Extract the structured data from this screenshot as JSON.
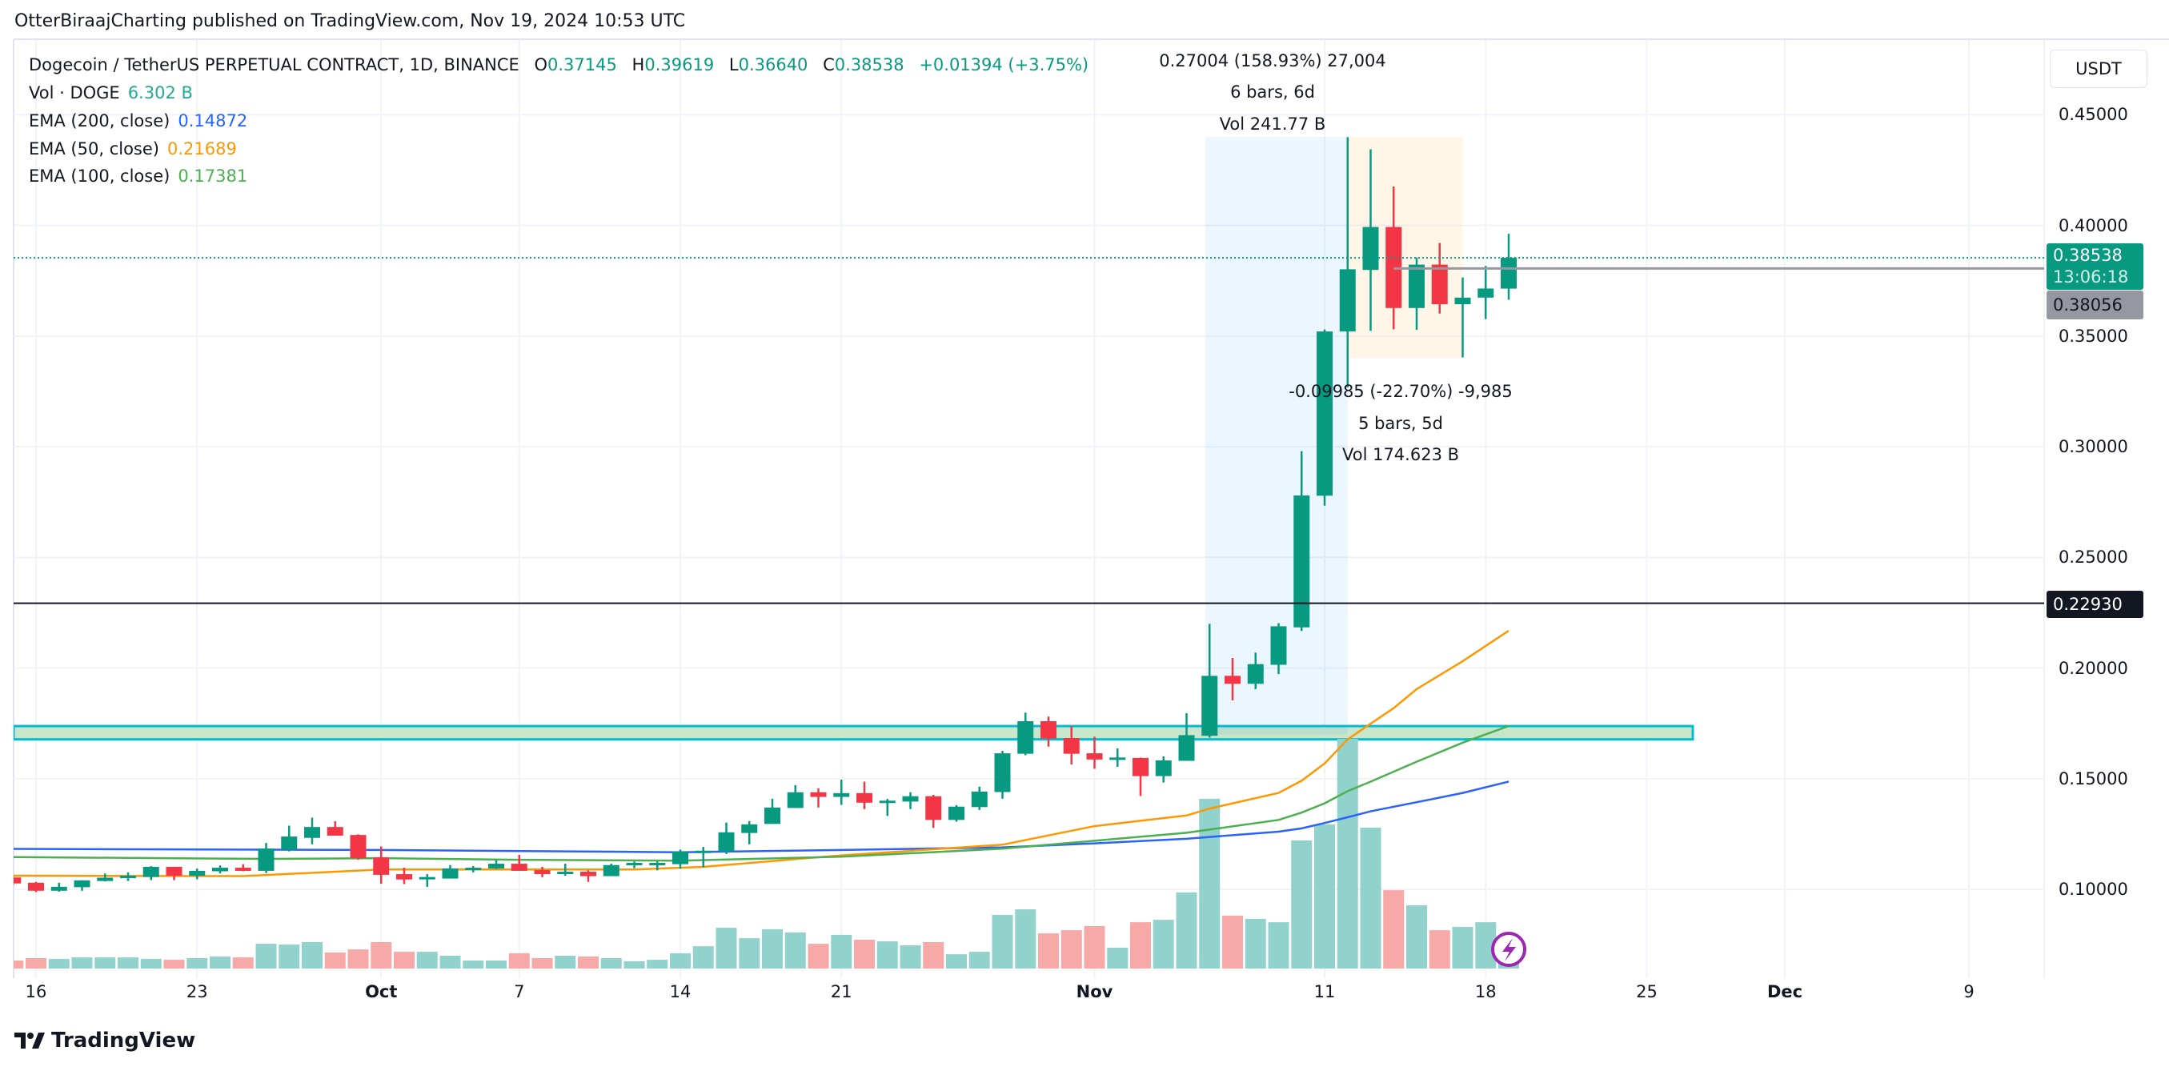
{
  "header": {
    "published": "OtterBiraajCharting published on TradingView.com, Nov 19, 2024 10:53 UTC"
  },
  "legend": {
    "symbol": "Dogecoin / TetherUS PERPETUAL CONTRACT, 1D, BINANCE",
    "o_label": "O",
    "o": "0.37145",
    "h_label": "H",
    "h": "0.39619",
    "l_label": "L",
    "l": "0.36640",
    "c_label": "C",
    "c": "0.38538",
    "change": "+0.01394 (+3.75%)",
    "vol_label": "Vol · DOGE",
    "vol": "6.302 B",
    "ema200_label": "EMA (200, close)",
    "ema200": "0.14872",
    "ema50_label": "EMA (50, close)",
    "ema50": "0.21689",
    "ema100_label": "EMA (100, close)",
    "ema100": "0.17381"
  },
  "currency_button": "USDT",
  "price_labels": {
    "last": "0.38538",
    "countdown": "13:06:18",
    "gray_line": "0.38056",
    "horizontal_line": "0.22930"
  },
  "measure_up": {
    "change": "0.27004 (158.93%) 27,004",
    "bars": "6 bars, 6d",
    "vol": "Vol 241.77 B"
  },
  "measure_down": {
    "change": "-0.09985 (-22.70%) -9,985",
    "bars": "5 bars, 5d",
    "vol": "Vol 174.623 B"
  },
  "brand": "TradingView",
  "colors": {
    "up": "#089981",
    "down": "#f23645",
    "vol_up": "#92d2cc",
    "vol_down": "#f7a9a7",
    "ema200": "#2962ff",
    "ema50": "#ff9800",
    "ema100": "#4caf50",
    "zone_fill": "#c8e6c9",
    "zone_border": "#00bcd4",
    "hline": "#131722",
    "gray_line": "#9598a1",
    "lightning": "#9c27b0"
  },
  "chart_data": {
    "type": "candlestick",
    "title": "Dogecoin / TetherUS PERPETUAL CONTRACT, 1D, BINANCE",
    "y_axis": {
      "ticks": [
        "0.45000",
        "0.40000",
        "0.35000",
        "0.30000",
        "0.25000",
        "0.20000",
        "0.15000",
        "0.10000"
      ],
      "tick_values": [
        0.45,
        0.4,
        0.35,
        0.3,
        0.25,
        0.2,
        0.15,
        0.1
      ],
      "range": [
        0.07,
        0.47
      ],
      "unit": "USDT"
    },
    "x_axis": {
      "ticks": [
        {
          "label": "16",
          "date": "2024-09-16"
        },
        {
          "label": "23",
          "date": "2024-09-23"
        },
        {
          "label": "Oct",
          "date": "2024-10-01",
          "major": true
        },
        {
          "label": "7",
          "date": "2024-10-07"
        },
        {
          "label": "14",
          "date": "2024-10-14"
        },
        {
          "label": "21",
          "date": "2024-10-21"
        },
        {
          "label": "Nov",
          "date": "2024-11-01",
          "major": true
        },
        {
          "label": "11",
          "date": "2024-11-11"
        },
        {
          "label": "18",
          "date": "2024-11-18"
        },
        {
          "label": "25",
          "date": "2024-11-25"
        },
        {
          "label": "Dec",
          "date": "2024-12-01",
          "major": true
        },
        {
          "label": "9",
          "date": "2024-12-09"
        }
      ]
    },
    "grid": true,
    "columns": [
      "date",
      "open",
      "high",
      "low",
      "close",
      "volume_B"
    ],
    "candles": [
      [
        "2024-09-15",
        0.1054,
        0.106,
        0.102,
        0.1027,
        3.3
      ],
      [
        "2024-09-16",
        0.103,
        0.1034,
        0.0988,
        0.0994,
        4.3
      ],
      [
        "2024-09-17",
        0.0994,
        0.103,
        0.099,
        0.1012,
        4.0
      ],
      [
        "2024-09-18",
        0.101,
        0.1041,
        0.0994,
        0.1041,
        4.6
      ],
      [
        "2024-09-19",
        0.1038,
        0.1072,
        0.1036,
        0.1053,
        4.6
      ],
      [
        "2024-09-20",
        0.1055,
        0.1077,
        0.1038,
        0.1062,
        4.6
      ],
      [
        "2024-09-21",
        0.1056,
        0.1105,
        0.1042,
        0.1102,
        4.0
      ],
      [
        "2024-09-22",
        0.1102,
        0.1102,
        0.1042,
        0.1062,
        3.6
      ],
      [
        "2024-09-23",
        0.1062,
        0.1094,
        0.1046,
        0.1084,
        4.3
      ],
      [
        "2024-09-24",
        0.1082,
        0.1108,
        0.1072,
        0.1098,
        5.0
      ],
      [
        "2024-09-25",
        0.1098,
        0.1114,
        0.1082,
        0.1084,
        4.6
      ],
      [
        "2024-09-26",
        0.1084,
        0.121,
        0.1074,
        0.1185,
        10.2
      ],
      [
        "2024-09-27",
        0.118,
        0.1288,
        0.1172,
        0.1239,
        9.9
      ],
      [
        "2024-09-28",
        0.1233,
        0.1324,
        0.1204,
        0.1282,
        10.9
      ],
      [
        "2024-09-29",
        0.1282,
        0.1308,
        0.1243,
        0.1243,
        6.6
      ],
      [
        "2024-09-30",
        0.1246,
        0.1249,
        0.1134,
        0.1141,
        7.9
      ],
      [
        "2024-10-01",
        0.1145,
        0.1194,
        0.1026,
        0.1066,
        10.9
      ],
      [
        "2024-10-02",
        0.1069,
        0.1098,
        0.1024,
        0.1045,
        6.9
      ],
      [
        "2024-10-03",
        0.1053,
        0.1069,
        0.1012,
        0.1056,
        6.9
      ],
      [
        "2024-10-04",
        0.1049,
        0.111,
        0.1049,
        0.1095,
        5.3
      ],
      [
        "2024-10-05",
        0.1091,
        0.1105,
        0.1077,
        0.1098,
        3.3
      ],
      [
        "2024-10-06",
        0.1095,
        0.1132,
        0.1092,
        0.1116,
        3.3
      ],
      [
        "2024-10-07",
        0.1116,
        0.1156,
        0.1084,
        0.1084,
        6.3
      ],
      [
        "2024-10-08",
        0.1087,
        0.1102,
        0.1055,
        0.1069,
        4.3
      ],
      [
        "2024-10-09",
        0.1071,
        0.1116,
        0.1062,
        0.108,
        5.3
      ],
      [
        "2024-10-10",
        0.108,
        0.1086,
        0.1034,
        0.106,
        5.0
      ],
      [
        "2024-10-11",
        0.106,
        0.1116,
        0.106,
        0.111,
        4.3
      ],
      [
        "2024-10-12",
        0.1114,
        0.1126,
        0.1096,
        0.112,
        3.0
      ],
      [
        "2024-10-13",
        0.1114,
        0.1126,
        0.1086,
        0.112,
        3.6
      ],
      [
        "2024-10-14",
        0.1114,
        0.118,
        0.1094,
        0.1171,
        6.3
      ],
      [
        "2024-10-15",
        0.1169,
        0.1192,
        0.11,
        0.1175,
        9.2
      ],
      [
        "2024-10-16",
        0.1172,
        0.1302,
        0.116,
        0.1258,
        16.8
      ],
      [
        "2024-10-17",
        0.1255,
        0.1309,
        0.1204,
        0.1294,
        12.5
      ],
      [
        "2024-10-18",
        0.1296,
        0.141,
        0.1296,
        0.137,
        16.2
      ],
      [
        "2024-10-19",
        0.1368,
        0.1471,
        0.1368,
        0.1439,
        14.9
      ],
      [
        "2024-10-20",
        0.1439,
        0.1457,
        0.137,
        0.1418,
        10.2
      ],
      [
        "2024-10-21",
        0.1418,
        0.1496,
        0.1382,
        0.1435,
        13.9
      ],
      [
        "2024-10-22",
        0.1435,
        0.1487,
        0.1363,
        0.1392,
        11.9
      ],
      [
        "2024-10-23",
        0.1397,
        0.1409,
        0.1332,
        0.1401,
        11.2
      ],
      [
        "2024-10-24",
        0.1397,
        0.1439,
        0.1363,
        0.1421,
        9.6
      ],
      [
        "2024-10-25",
        0.1421,
        0.1427,
        0.1278,
        0.1314,
        10.9
      ],
      [
        "2024-10-26",
        0.1314,
        0.1381,
        0.1306,
        0.1374,
        5.9
      ],
      [
        "2024-10-27",
        0.1372,
        0.1464,
        0.1359,
        0.1442,
        6.9
      ],
      [
        "2024-10-28",
        0.144,
        0.1626,
        0.141,
        0.1615,
        22.1
      ],
      [
        "2024-10-29",
        0.1613,
        0.1799,
        0.1606,
        0.176,
        24.4
      ],
      [
        "2024-10-30",
        0.176,
        0.1781,
        0.1645,
        0.1682,
        14.5
      ],
      [
        "2024-10-31",
        0.1684,
        0.1737,
        0.1565,
        0.1613,
        15.8
      ],
      [
        "2024-11-01",
        0.1615,
        0.169,
        0.1545,
        0.1587,
        17.5
      ],
      [
        "2024-11-02",
        0.1591,
        0.1637,
        0.1554,
        0.1596,
        8.6
      ],
      [
        "2024-11-03",
        0.1594,
        0.1596,
        0.1422,
        0.1512,
        19.1
      ],
      [
        "2024-11-04",
        0.1512,
        0.1601,
        0.1483,
        0.1583,
        20.1
      ],
      [
        "2024-11-05",
        0.1581,
        0.1796,
        0.1581,
        0.1697,
        31.4
      ],
      [
        "2024-11-06",
        0.1694,
        0.22,
        0.1686,
        0.1965,
        70.0
      ],
      [
        "2024-11-07",
        0.1965,
        0.2046,
        0.1854,
        0.1929,
        21.8
      ],
      [
        "2024-11-08",
        0.1929,
        0.207,
        0.1905,
        0.2018,
        20.5
      ],
      [
        "2024-11-09",
        0.2015,
        0.2203,
        0.1973,
        0.2189,
        19.1
      ],
      [
        "2024-11-10",
        0.2184,
        0.298,
        0.2168,
        0.278,
        52.8
      ],
      [
        "2024-11-11",
        0.2779,
        0.353,
        0.2734,
        0.3521,
        59.4
      ],
      [
        "2024-11-12",
        0.3521,
        0.4399,
        0.3268,
        0.3802,
        94.7
      ],
      [
        "2024-11-13",
        0.3799,
        0.4344,
        0.3524,
        0.3993,
        58.1
      ],
      [
        "2024-11-14",
        0.3993,
        0.4176,
        0.3531,
        0.3627,
        32.3
      ],
      [
        "2024-11-15",
        0.3627,
        0.3855,
        0.3528,
        0.3823,
        26.1
      ],
      [
        "2024-11-16",
        0.3823,
        0.3921,
        0.3602,
        0.3644,
        15.8
      ],
      [
        "2024-11-17",
        0.3644,
        0.3765,
        0.3404,
        0.3674,
        17.2
      ],
      [
        "2024-11-18",
        0.3674,
        0.3817,
        0.3577,
        0.3715,
        19.1
      ],
      [
        "2024-11-19",
        0.37145,
        0.39619,
        0.3664,
        0.38538,
        6.302
      ]
    ],
    "ema": [
      {
        "name": "EMA (200, close)",
        "color": "#2962ff",
        "points": [
          [
            "2024-09-15",
            0.1183
          ],
          [
            "2024-10-01",
            0.1178
          ],
          [
            "2024-10-14",
            0.1168
          ],
          [
            "2024-10-21",
            0.1178
          ],
          [
            "2024-10-28",
            0.119
          ],
          [
            "2024-11-01",
            0.1208
          ],
          [
            "2024-11-05",
            0.1229
          ],
          [
            "2024-11-09",
            0.1261
          ],
          [
            "2024-11-10",
            0.1276
          ],
          [
            "2024-11-11",
            0.13
          ],
          [
            "2024-11-12",
            0.1326
          ],
          [
            "2024-11-13",
            0.1353
          ],
          [
            "2024-11-15",
            0.1394
          ],
          [
            "2024-11-17",
            0.1436
          ],
          [
            "2024-11-19",
            0.14872
          ]
        ]
      },
      {
        "name": "EMA (50, close)",
        "color": "#ff9800",
        "points": [
          [
            "2024-09-15",
            0.1062
          ],
          [
            "2024-09-25",
            0.106
          ],
          [
            "2024-10-01",
            0.109
          ],
          [
            "2024-10-07",
            0.109
          ],
          [
            "2024-10-12",
            0.109
          ],
          [
            "2024-10-15",
            0.1102
          ],
          [
            "2024-10-21",
            0.1154
          ],
          [
            "2024-10-28",
            0.1202
          ],
          [
            "2024-11-01",
            0.1286
          ],
          [
            "2024-11-05",
            0.1334
          ],
          [
            "2024-11-06",
            0.1365
          ],
          [
            "2024-11-09",
            0.1436
          ],
          [
            "2024-11-10",
            0.1491
          ],
          [
            "2024-11-11",
            0.1569
          ],
          [
            "2024-11-12",
            0.1678
          ],
          [
            "2024-11-13",
            0.1749
          ],
          [
            "2024-11-14",
            0.1819
          ],
          [
            "2024-11-15",
            0.1905
          ],
          [
            "2024-11-17",
            0.2031
          ],
          [
            "2024-11-19",
            0.21689
          ]
        ]
      },
      {
        "name": "EMA (100, close)",
        "color": "#4caf50",
        "points": [
          [
            "2024-09-15",
            0.1146
          ],
          [
            "2024-09-26",
            0.1138
          ],
          [
            "2024-10-01",
            0.1141
          ],
          [
            "2024-10-07",
            0.1134
          ],
          [
            "2024-10-14",
            0.113
          ],
          [
            "2024-10-21",
            0.1148
          ],
          [
            "2024-10-28",
            0.1184
          ],
          [
            "2024-11-01",
            0.122
          ],
          [
            "2024-11-05",
            0.1256
          ],
          [
            "2024-11-09",
            0.1314
          ],
          [
            "2024-11-10",
            0.1347
          ],
          [
            "2024-11-11",
            0.1389
          ],
          [
            "2024-11-12",
            0.1444
          ],
          [
            "2024-11-13",
            0.1487
          ],
          [
            "2024-11-15",
            0.1577
          ],
          [
            "2024-11-17",
            0.1663
          ],
          [
            "2024-11-19",
            0.17381
          ]
        ]
      }
    ],
    "horizontal_line": 0.2293,
    "last_price": 0.38538,
    "gray_line": {
      "value": 0.38056,
      "from": "2024-11-14"
    },
    "zone": {
      "top": 0.1738,
      "bottom": 0.1678,
      "to": "2024-11-27"
    },
    "measure_up_box": {
      "from": "2024-11-06",
      "to": "2024-11-12",
      "low": 0.16991,
      "high": 0.43995
    },
    "measure_down_box": {
      "from": "2024-11-12",
      "to": "2024-11-17",
      "high": 0.43995,
      "low": 0.3401
    }
  }
}
